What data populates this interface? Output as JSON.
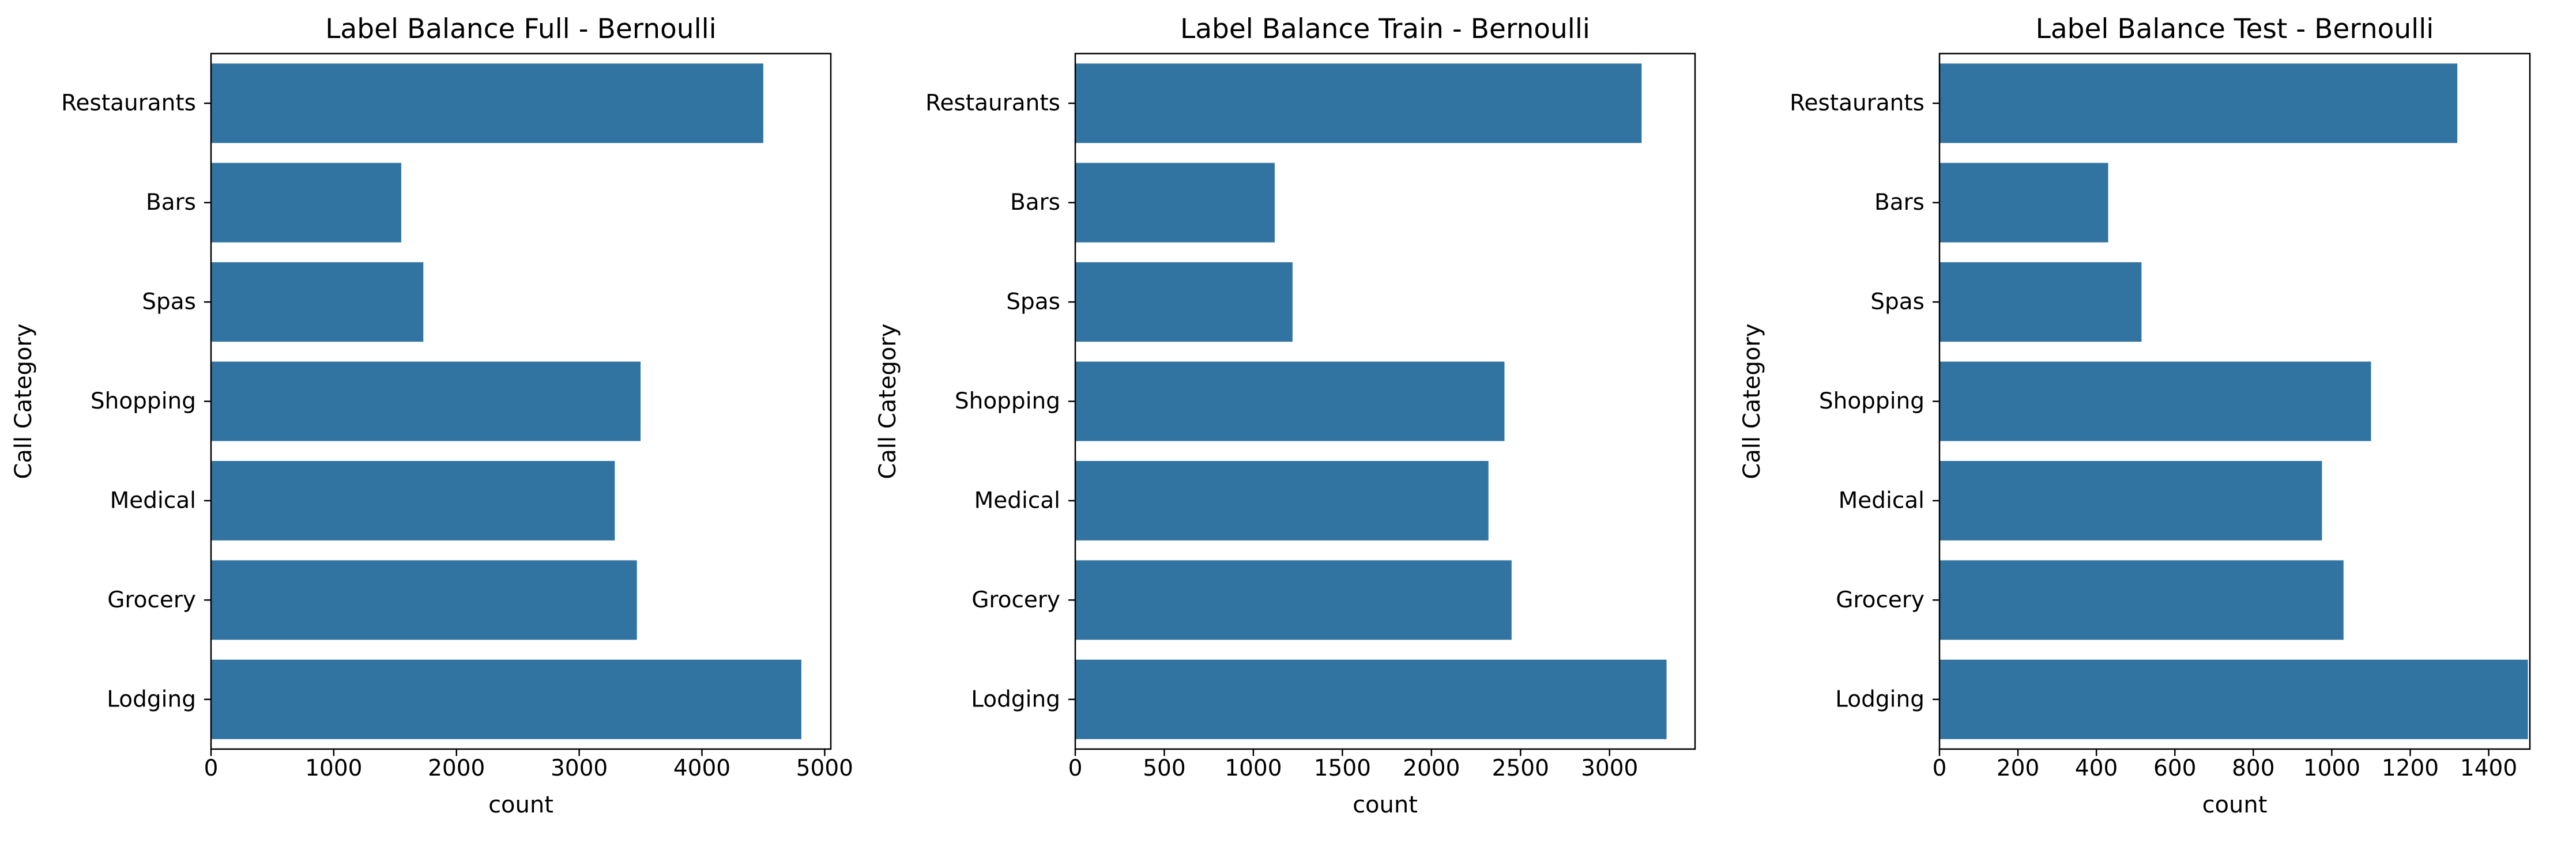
{
  "figure": {
    "background": "#ffffff",
    "bar_color": "#3274a1"
  },
  "chart_data": [
    {
      "type": "bar",
      "orientation": "horizontal",
      "title": "Label Balance Full - Bernoulli",
      "xlabel": "count",
      "ylabel": "Call Category",
      "categories": [
        "Restaurants",
        "Bars",
        "Spas",
        "Shopping",
        "Medical",
        "Grocery",
        "Lodging"
      ],
      "values": [
        4500,
        1550,
        1730,
        3500,
        3290,
        3470,
        4810
      ],
      "xlim": [
        0,
        5050
      ],
      "xticks": [
        0,
        1000,
        2000,
        3000,
        4000,
        5000
      ],
      "grid": false
    },
    {
      "type": "bar",
      "orientation": "horizontal",
      "title": "Label Balance Train - Bernoulli",
      "xlabel": "count",
      "ylabel": "Call Category",
      "categories": [
        "Restaurants",
        "Bars",
        "Spas",
        "Shopping",
        "Medical",
        "Grocery",
        "Lodging"
      ],
      "values": [
        3180,
        1120,
        1220,
        2410,
        2320,
        2450,
        3320
      ],
      "xlim": [
        0,
        3480
      ],
      "xticks": [
        0,
        500,
        1000,
        1500,
        2000,
        2500,
        3000
      ],
      "grid": false
    },
    {
      "type": "bar",
      "orientation": "horizontal",
      "title": "Label Balance Test - Bernoulli",
      "xlabel": "count",
      "ylabel": "Call Category",
      "categories": [
        "Restaurants",
        "Bars",
        "Spas",
        "Shopping",
        "Medical",
        "Grocery",
        "Lodging"
      ],
      "values": [
        1320,
        430,
        515,
        1100,
        975,
        1030,
        1500
      ],
      "xlim": [
        0,
        1505
      ],
      "xticks": [
        0,
        200,
        400,
        600,
        800,
        1000,
        1200,
        1400
      ],
      "grid": false
    }
  ]
}
